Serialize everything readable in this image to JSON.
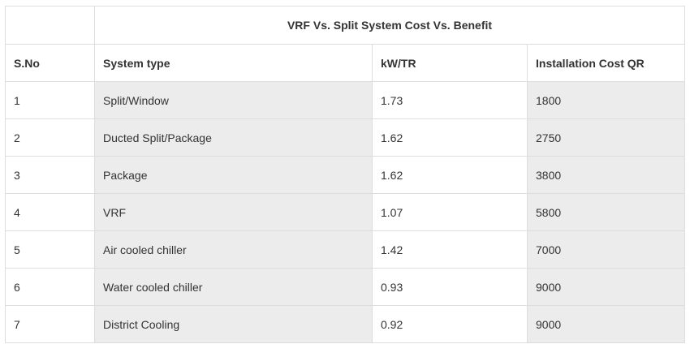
{
  "table": {
    "title": "VRF Vs. Split System Cost Vs. Benefit",
    "columns": [
      "S.No",
      "System type",
      "kW/TR",
      "Installation Cost QR"
    ],
    "rows": [
      {
        "sno": "1",
        "system_type": "Split/Window",
        "kw_tr": "1.73",
        "cost": "1800"
      },
      {
        "sno": "2",
        "system_type": "Ducted Split/Package",
        "kw_tr": "1.62",
        "cost": "2750"
      },
      {
        "sno": "3",
        "system_type": "Package",
        "kw_tr": "1.62",
        "cost": "3800"
      },
      {
        "sno": "4",
        "system_type": "VRF",
        "kw_tr": "1.07",
        "cost": "5800"
      },
      {
        "sno": "5",
        "system_type": "Air cooled chiller",
        "kw_tr": "1.42",
        "cost": "7000"
      },
      {
        "sno": "6",
        "system_type": "Water cooled chiller",
        "kw_tr": "0.93",
        "cost": "9000"
      },
      {
        "sno": "7",
        "system_type": "District Cooling",
        "kw_tr": "0.92",
        "cost": "9000"
      }
    ]
  },
  "colors": {
    "border": "#dddddd",
    "stripe": "#ececec",
    "text": "#333333"
  }
}
